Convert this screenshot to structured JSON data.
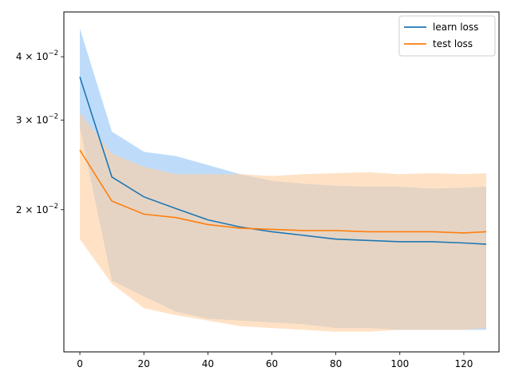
{
  "chart_data": {
    "type": "line",
    "title": "",
    "xlabel": "",
    "ylabel": "",
    "xlim": [
      -5,
      131
    ],
    "ylim": [
      0.0105,
      0.049
    ],
    "yscale": "log",
    "x_ticks": [
      0,
      20,
      40,
      60,
      80,
      100,
      120
    ],
    "x_tick_labels": [
      "0",
      "20",
      "40",
      "60",
      "80",
      "100",
      "120"
    ],
    "y_ticks": [
      0.02,
      0.03,
      0.04
    ],
    "y_tick_labels": [
      {
        "base": "2 × 10",
        "exp": "−2"
      },
      {
        "base": "3 × 10",
        "exp": "−2"
      },
      {
        "base": "4 × 10",
        "exp": "−2"
      }
    ],
    "grid": false,
    "legend": {
      "position": "top-right"
    },
    "x": [
      0,
      10,
      20,
      30,
      40,
      50,
      60,
      70,
      80,
      90,
      100,
      110,
      120,
      127
    ],
    "series": [
      {
        "name": "learn loss",
        "color": "#1f77b4",
        "band_color": "#a8d0f8",
        "values": [
          0.0365,
          0.0232,
          0.0212,
          0.0201,
          0.0191,
          0.0185,
          0.0181,
          0.0178,
          0.0175,
          0.0174,
          0.0173,
          0.0173,
          0.0172,
          0.0171
        ],
        "upper": [
          0.0455,
          0.0285,
          0.026,
          0.0255,
          0.0245,
          0.0235,
          0.0228,
          0.0225,
          0.0223,
          0.0222,
          0.0222,
          0.022,
          0.0221,
          0.0222
        ],
        "lower": [
          0.029,
          0.0145,
          0.0135,
          0.0126,
          0.0122,
          0.0121,
          0.012,
          0.0119,
          0.0117,
          0.0117,
          0.0116,
          0.0116,
          0.0116,
          0.0116
        ]
      },
      {
        "name": "test loss",
        "color": "#ff7f0e",
        "band_color": "#ffcfa0",
        "values": [
          0.0262,
          0.0208,
          0.0196,
          0.0193,
          0.0187,
          0.0184,
          0.0183,
          0.0182,
          0.0182,
          0.0181,
          0.0181,
          0.0181,
          0.018,
          0.0181
        ],
        "upper": [
          0.031,
          0.0258,
          0.0243,
          0.0235,
          0.0235,
          0.0235,
          0.0233,
          0.0235,
          0.0236,
          0.0237,
          0.0235,
          0.0236,
          0.0235,
          0.0236
        ],
        "lower": [
          0.0175,
          0.0143,
          0.0128,
          0.0124,
          0.0121,
          0.0118,
          0.0117,
          0.0116,
          0.0115,
          0.0115,
          0.0116,
          0.0116,
          0.0116,
          0.0117
        ]
      }
    ]
  }
}
